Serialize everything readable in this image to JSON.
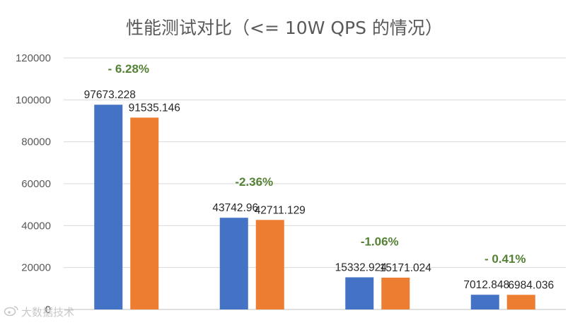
{
  "chart_data": {
    "type": "bar",
    "title": "性能测试对比（<= 10W QPS 的情况）",
    "categories": [
      "",
      "",
      "",
      ""
    ],
    "series": [
      {
        "values": [
          97673.228,
          43742.96,
          15332.924,
          7012.848
        ],
        "labels": [
          "97673.228",
          "43742.96",
          "15332.924",
          "7012.848"
        ],
        "color": "#4472c4"
      },
      {
        "values": [
          91535.146,
          42711.129,
          15171.024,
          6984.036
        ],
        "labels": [
          "91535.146",
          "42711.129",
          "15171.024",
          "6984.036"
        ],
        "color": "#ed7d31"
      }
    ],
    "annotations": [
      "- 6.28%",
      "-2.36%",
      "-1.06%",
      "- 0.41%"
    ],
    "annotation_color": "#548235",
    "ylim": [
      0,
      120000
    ],
    "yticks": [
      "0",
      "20000",
      "40000",
      "60000",
      "80000",
      "100000",
      "120000"
    ],
    "grid": true,
    "legend": "none"
  },
  "watermark": {
    "text": "大数据技术",
    "icon": "weibo-icon"
  }
}
